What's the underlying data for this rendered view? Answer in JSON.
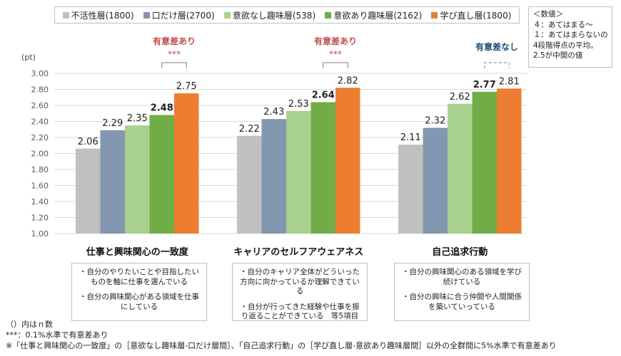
{
  "chart_data": {
    "type": "bar",
    "ylabel": "(pt)",
    "ylim": [
      1.0,
      3.0
    ],
    "yticks": [
      "1.00",
      "1.20",
      "1.40",
      "1.60",
      "1.80",
      "2.00",
      "2.20",
      "2.40",
      "2.60",
      "2.80",
      "3.00"
    ],
    "categories": [
      "仕事と興味関心の一致度",
      "キャリアのセルフアウェアネス",
      "自己追求行動"
    ],
    "series": [
      {
        "name": "不活性層(1800)",
        "color": "#c0c0c0",
        "values": [
          2.06,
          2.22,
          2.11
        ]
      },
      {
        "name": "口だけ層(2700)",
        "color": "#8497b0",
        "values": [
          2.29,
          2.43,
          2.32
        ]
      },
      {
        "name": "意欲なし趣味層(538)",
        "color": "#a9d18e",
        "values": [
          2.35,
          2.53,
          2.62
        ]
      },
      {
        "name": "意欲あり趣味層(2162)",
        "color": "#70ad47",
        "values": [
          2.48,
          2.64,
          2.77
        ]
      },
      {
        "name": "学び直し層(1800)",
        "color": "#ed7d31",
        "values": [
          2.75,
          2.82,
          2.81
        ]
      }
    ],
    "value_labels": [
      [
        "2.06",
        "2.29",
        "2.35",
        "2.48",
        "2.75"
      ],
      [
        "2.22",
        "2.43",
        "2.53",
        "2.64",
        "2.82"
      ],
      [
        "2.11",
        "2.32",
        "2.62",
        "2.77",
        "2.81"
      ]
    ],
    "bold_series_index": 3,
    "significance": [
      {
        "label": "有意差あり",
        "stars": "***",
        "color": "#c0504d"
      },
      {
        "label": "有意差あり",
        "stars": "***",
        "color": "#c0504d"
      },
      {
        "label": "有意差なし",
        "stars": "",
        "color": "#1f4e79"
      }
    ],
    "grid": true,
    "legend_position": "top"
  },
  "note": {
    "lines": [
      "＜数値＞",
      "４：あてはまる～",
      "１：あてはまらないの",
      "4段階得点の平均。",
      "2.5が中間の値"
    ]
  },
  "descriptions": [
    [
      "・自分のやりたいことや目指したいものを軸に仕事を選んでいる",
      "・自分の興味関心がある領域を仕事にしている"
    ],
    [
      "・自分のキャリア全体がどういった方向に向かっているか理解できている",
      "・自分が行ってきた経験や仕事を振り返ることができている　等5項目"
    ],
    [
      "・自分の興味関心のある領域を学び続けている",
      "・自分の興味に合う仲間や人間関係を築いていっている"
    ]
  ],
  "footnotes": [
    "（）内はｎ数",
    "***：0.1%水準で有意差あり",
    "※「仕事と興味関心の一致度」の［意欲なし趣味層-口だけ層間］、「自己追求行動」の［学び直し層-意欲あり趣味層間］以外の全群間に5%水準で有意差あり"
  ]
}
